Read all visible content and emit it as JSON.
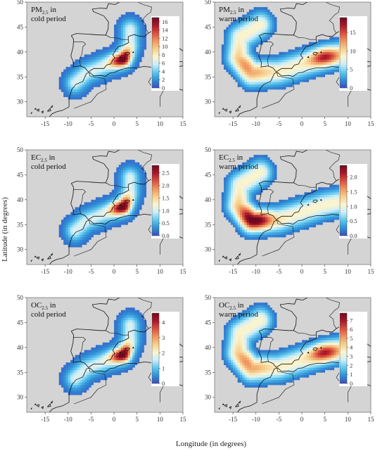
{
  "figure": {
    "xlabel": "Longitude (in degrees)",
    "ylabel": "Latitude (in degrees)",
    "lon_ticks": [
      -15,
      -10,
      -5,
      0,
      5,
      10,
      15
    ],
    "lat_ticks": [
      30,
      35,
      40,
      45,
      50
    ],
    "lon_range": [
      -19,
      15
    ],
    "lat_range": [
      27,
      50
    ]
  },
  "colors": {
    "land": "#d4d4d4",
    "coast": "#111111",
    "scale": [
      "#3b4cc0",
      "#2f8fd6",
      "#5ec8ef",
      "#cdeefa",
      "#fbf5cf",
      "#f7cf8e",
      "#ef9560",
      "#d9503e",
      "#a8182a",
      "#6e0a1e"
    ]
  },
  "chart_data": [
    {
      "type": "heatmap",
      "title_main": "PM",
      "title_sub": "2.5",
      "title_rest": " in",
      "title_line2": "cold period",
      "colorbar_ticks": [
        0,
        2,
        4,
        6,
        8,
        10,
        12,
        14,
        16
      ],
      "colorbar_range": [
        0,
        17
      ],
      "plume": "cold",
      "peak_location": [
        2,
        38.5
      ],
      "peak_value": 16
    },
    {
      "type": "heatmap",
      "title_main": "PM",
      "title_sub": "2.5",
      "title_rest": " in",
      "title_line2": "warm period",
      "colorbar_ticks": [
        0,
        5,
        10,
        15
      ],
      "colorbar_range": [
        0,
        19
      ],
      "plume": "warm",
      "peak_location": [
        5,
        39
      ],
      "peak_value": 19
    },
    {
      "type": "heatmap",
      "title_main": "EC",
      "title_sub": "2.5",
      "title_rest": " in",
      "title_line2": "cold period",
      "colorbar_ticks": [
        0.0,
        0.5,
        1.0,
        1.5,
        2.0,
        2.5
      ],
      "colorbar_range": [
        0,
        2.8
      ],
      "plume": "cold",
      "peak_location": [
        2,
        38.5
      ],
      "peak_value": 2.8
    },
    {
      "type": "heatmap",
      "title_main": "EC",
      "title_sub": "2.5",
      "title_rest": " in",
      "title_line2": "warm period",
      "colorbar_ticks": [
        0.0,
        0.5,
        1.0,
        1.5,
        2.0
      ],
      "colorbar_range": [
        0,
        2.4
      ],
      "plume": "warm",
      "peak_location": [
        -10,
        36
      ],
      "peak_value": 2.4
    },
    {
      "type": "heatmap",
      "title_main": "OC",
      "title_sub": "2.5",
      "title_rest": " in",
      "title_line2": "cold period",
      "colorbar_ticks": [
        0,
        1,
        2,
        3,
        4
      ],
      "colorbar_range": [
        0,
        4.6
      ],
      "plume": "cold",
      "peak_location": [
        2,
        38.5
      ],
      "peak_value": 4.6
    },
    {
      "type": "heatmap",
      "title_main": "OC",
      "title_sub": "2.5",
      "title_rest": " in",
      "title_line2": "warm period",
      "colorbar_ticks": [
        0,
        1,
        2,
        3,
        4,
        5,
        6,
        7
      ],
      "colorbar_range": [
        0,
        7.8
      ],
      "plume": "warm",
      "peak_location": [
        5,
        39
      ],
      "peak_value": 7.8
    }
  ]
}
